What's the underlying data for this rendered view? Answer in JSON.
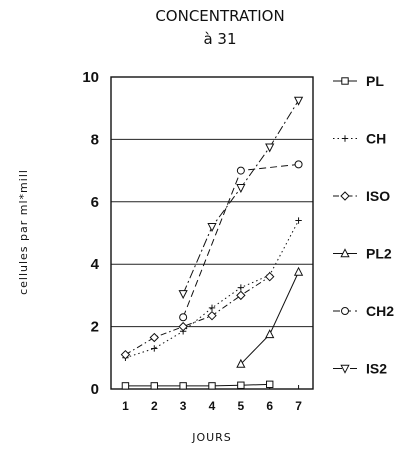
{
  "chart_data": {
    "type": "line",
    "title": "CONCENTRATION",
    "subtitle": "à 31",
    "xlabel": "JOURS",
    "ylabel": "cellules par ml*mill",
    "x": [
      1,
      2,
      3,
      4,
      5,
      6,
      7
    ],
    "xlim": [
      0.5,
      7.5
    ],
    "ylim": [
      0,
      10
    ],
    "yticks": [
      0,
      2,
      4,
      6,
      8,
      10
    ],
    "grid": "horizontal",
    "legend_position": "right",
    "series": [
      {
        "name": "PL",
        "marker": "square",
        "dash": "",
        "values": [
          0.1,
          0.1,
          0.1,
          0.1,
          0.12,
          0.15,
          null
        ]
      },
      {
        "name": "CH",
        "marker": "plus",
        "dash": "1.5,3",
        "values": [
          1.0,
          1.3,
          1.85,
          2.6,
          3.25,
          3.65,
          5.4
        ]
      },
      {
        "name": "ISO",
        "marker": "diamond",
        "dash": "6,3,1.5,3",
        "values": [
          1.1,
          1.65,
          2.0,
          2.35,
          3.0,
          3.6,
          null
        ]
      },
      {
        "name": "PL2",
        "marker": "triangle",
        "dash": "",
        "values": [
          null,
          null,
          null,
          null,
          0.8,
          1.75,
          3.75
        ]
      },
      {
        "name": "CH2",
        "marker": "circle",
        "dash": "7,4",
        "values": [
          null,
          null,
          2.3,
          null,
          7.0,
          null,
          7.2
        ]
      },
      {
        "name": "IS2",
        "marker": "triangle-down",
        "dash": "9,3,2,3",
        "values": [
          null,
          null,
          3.05,
          5.2,
          6.45,
          7.75,
          9.25
        ]
      }
    ]
  }
}
